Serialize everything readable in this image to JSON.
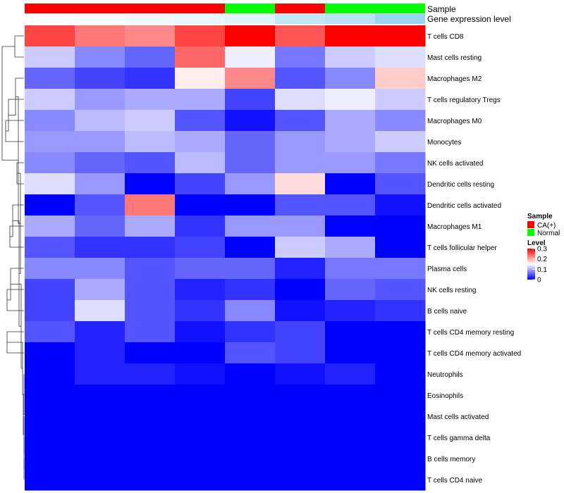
{
  "chart_data": {
    "type": "heatmap",
    "title": "",
    "annotation_titles": {
      "sample": "Sample",
      "gene": "Gene expression level"
    },
    "sample_groups": [
      "CA(+)",
      "CA(+)",
      "CA(+)",
      "CA(+)",
      "Normal",
      "CA(+)",
      "Normal",
      "Normal"
    ],
    "gene_expression_level": [
      0.02,
      0.05,
      0.12,
      0.18,
      0.25,
      0.5,
      0.6,
      0.85
    ],
    "gene_colors": {
      "low": "#ffffff",
      "high": "#87ceeb"
    },
    "group_colors": {
      "CA(+)": "#ff0000",
      "Normal": "#00ff00"
    },
    "rows": [
      "T cells CD8",
      "Mast cells resting",
      "Macrophages M2",
      "T cells regulatory  Tregs",
      "Macrophages M0",
      "Monocytes",
      "NK cells activated",
      "Dendritic cells resting",
      "Dendritic cells activated",
      "Macrophages M1",
      "T cells follicular helper",
      "Plasma cells",
      "NK cells resting",
      "B cells naive",
      "T cells CD4 memory resting",
      "T cells CD4 memory activated",
      "Neutrophils",
      "Eosinophils",
      "Mast cells activated",
      "T cells gamma delta",
      "B cells memory",
      "T cells CD4 naive"
    ],
    "values": [
      [
        0.26,
        0.23,
        0.22,
        0.26,
        0.3,
        0.25,
        0.3,
        0.3
      ],
      [
        0.12,
        0.08,
        0.06,
        0.24,
        0.14,
        0.07,
        0.12,
        0.13
      ],
      [
        0.06,
        0.04,
        0.03,
        0.16,
        0.22,
        0.05,
        0.08,
        0.18
      ],
      [
        0.12,
        0.09,
        0.1,
        0.1,
        0.04,
        0.13,
        0.14,
        0.12
      ],
      [
        0.08,
        0.11,
        0.12,
        0.05,
        0.01,
        0.05,
        0.1,
        0.08
      ],
      [
        0.09,
        0.09,
        0.11,
        0.1,
        0.06,
        0.09,
        0.1,
        0.12
      ],
      [
        0.08,
        0.06,
        0.05,
        0.11,
        0.06,
        0.09,
        0.09,
        0.07
      ],
      [
        0.13,
        0.09,
        0.0,
        0.04,
        0.09,
        0.17,
        0.0,
        0.05
      ],
      [
        0.0,
        0.05,
        0.23,
        0.0,
        0.0,
        0.05,
        0.05,
        0.01
      ],
      [
        0.1,
        0.06,
        0.1,
        0.03,
        0.09,
        0.09,
        0.0,
        0.0
      ],
      [
        0.05,
        0.03,
        0.03,
        0.04,
        0.0,
        0.12,
        0.1,
        0.0
      ],
      [
        0.08,
        0.08,
        0.05,
        0.06,
        0.06,
        0.02,
        0.07,
        0.07
      ],
      [
        0.04,
        0.1,
        0.05,
        0.02,
        0.03,
        0.0,
        0.06,
        0.05
      ],
      [
        0.04,
        0.13,
        0.05,
        0.03,
        0.08,
        0.01,
        0.02,
        0.03
      ],
      [
        0.05,
        0.02,
        0.05,
        0.01,
        0.03,
        0.04,
        0.0,
        0.0
      ],
      [
        0.0,
        0.02,
        0.0,
        0.0,
        0.05,
        0.04,
        0.0,
        0.0
      ],
      [
        0.0,
        0.02,
        0.02,
        0.01,
        0.0,
        0.01,
        0.02,
        0.0
      ],
      [
        0.0,
        0.0,
        0.0,
        0.0,
        0.0,
        0.0,
        0.0,
        0.0
      ],
      [
        0.0,
        0.0,
        0.0,
        0.0,
        0.0,
        0.0,
        0.0,
        0.0
      ],
      [
        0.0,
        0.0,
        0.0,
        0.0,
        0.0,
        0.0,
        0.0,
        0.0
      ],
      [
        0.0,
        0.0,
        0.0,
        0.0,
        0.0,
        0.0,
        0.0,
        0.0
      ],
      [
        0.0,
        0.0,
        0.0,
        0.0,
        0.0,
        0.0,
        0.0,
        0.0
      ]
    ],
    "color_scale": {
      "min": 0,
      "max": 0.3,
      "low": "#0000ff",
      "mid": "#ffffff",
      "high": "#ff0000",
      "midpoint": 0.15
    },
    "legend": {
      "sample_title": "Sample",
      "sample_entries": [
        "CA(+)",
        "Normal"
      ],
      "level_title": "Level",
      "level_ticks": [
        {
          "value": 0.3,
          "label": "0.3"
        },
        {
          "value": 0.2,
          "label": "0.2"
        },
        {
          "value": 0.1,
          "label": "0.1"
        },
        {
          "value": 0,
          "label": "0"
        }
      ]
    }
  }
}
